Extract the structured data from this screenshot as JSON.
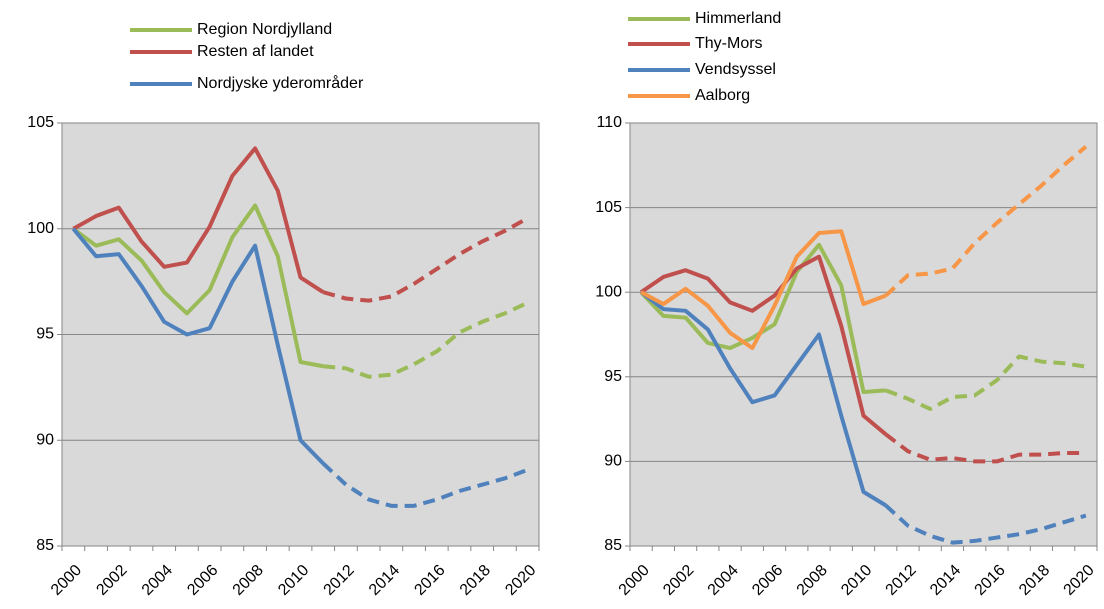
{
  "chart_data": [
    {
      "type": "line",
      "categories": [
        2000,
        null,
        2002,
        null,
        2004,
        null,
        2006,
        null,
        2008,
        null,
        2010,
        null,
        2012,
        null,
        2014,
        null,
        2016,
        null,
        2018,
        null,
        2020
      ],
      "ylim": [
        85,
        105
      ],
      "yticks": [
        85,
        90,
        95,
        100,
        105
      ],
      "grid": true,
      "dash_start": 11,
      "series": [
        {
          "name": "Region Nordjylland",
          "color": "#9bbb59",
          "values": [
            100,
            99.2,
            99.5,
            98.5,
            97.0,
            96.0,
            97.1,
            99.6,
            101.1,
            98.7,
            93.7,
            93.5,
            93.4,
            93.0,
            93.1,
            93.6,
            94.2,
            95.1,
            95.6,
            96.0,
            96.5
          ]
        },
        {
          "name": "Resten af landet",
          "color": "#c0504d",
          "values": [
            100,
            100.6,
            101.0,
            99.4,
            98.2,
            98.4,
            100.1,
            102.5,
            103.8,
            101.8,
            97.7,
            97.0,
            96.7,
            96.6,
            96.8,
            97.4,
            98.1,
            98.8,
            99.4,
            99.9,
            100.5
          ]
        },
        {
          "name": "Nordjyske yderområder",
          "color": "#4f81bd",
          "values": [
            100,
            98.7,
            98.8,
            97.3,
            95.6,
            95.0,
            95.3,
            97.5,
            99.2,
            94.5,
            90.0,
            88.9,
            87.9,
            87.2,
            86.9,
            86.9,
            87.2,
            87.6,
            87.9,
            88.2,
            88.6
          ]
        }
      ]
    },
    {
      "type": "line",
      "categories": [
        2000,
        null,
        2002,
        null,
        2004,
        null,
        2006,
        null,
        2008,
        null,
        2010,
        null,
        2012,
        null,
        2014,
        null,
        2016,
        null,
        2018,
        null,
        2020
      ],
      "ylim": [
        85,
        110
      ],
      "yticks": [
        85,
        90,
        95,
        100,
        105,
        110
      ],
      "grid": true,
      "dash_start": 11,
      "series": [
        {
          "name": "Himmerland",
          "color": "#9bbb59",
          "values": [
            100,
            98.6,
            98.5,
            97.0,
            96.7,
            97.3,
            98.1,
            101.2,
            102.8,
            100.4,
            94.1,
            94.2,
            93.7,
            93.1,
            93.8,
            93.9,
            94.8,
            96.2,
            95.9,
            95.8,
            95.6
          ]
        },
        {
          "name": "Thy-Mors",
          "color": "#c0504d",
          "values": [
            100,
            100.9,
            101.3,
            100.8,
            99.4,
            98.9,
            99.8,
            101.4,
            102.1,
            98.0,
            92.7,
            91.6,
            90.6,
            90.1,
            90.2,
            90.0,
            90.0,
            90.4,
            90.4,
            90.5,
            90.5
          ]
        },
        {
          "name": "Vendsyssel",
          "color": "#4f81bd",
          "values": [
            100,
            99.0,
            98.9,
            97.8,
            95.5,
            93.5,
            93.9,
            95.7,
            97.5,
            92.7,
            88.2,
            87.4,
            86.2,
            85.6,
            85.2,
            85.3,
            85.5,
            85.7,
            86.0,
            86.4,
            86.8
          ]
        },
        {
          "name": "Aalborg",
          "color": "#f79646",
          "values": [
            100,
            99.3,
            100.2,
            99.2,
            97.6,
            96.7,
            99.2,
            102.1,
            103.5,
            103.6,
            99.3,
            99.8,
            101.0,
            101.1,
            101.4,
            102.9,
            104.1,
            105.2,
            106.3,
            107.5,
            108.6
          ]
        }
      ]
    }
  ]
}
